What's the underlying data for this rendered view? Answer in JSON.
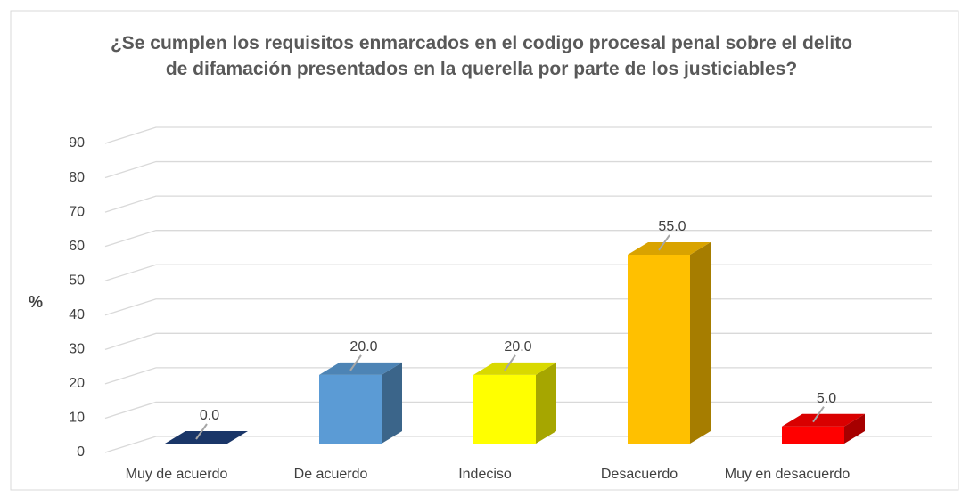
{
  "chart_data": {
    "type": "bar3d",
    "title": "¿Se cumplen los requisitos enmarcados en el codigo procesal  penal sobre  el delito de difamación  presentados  en la querella por parte de los justiciables?",
    "ylabel": "%",
    "categories": [
      "Muy de acuerdo",
      "De acuerdo",
      "Indeciso",
      "Desacuerdo",
      "Muy en desacuerdo"
    ],
    "values": [
      0,
      20,
      20,
      55,
      5
    ],
    "value_labels": [
      "0.0",
      "20.0",
      "20.0",
      "55.0",
      "5.0"
    ],
    "colors": [
      "#1f3f7a",
      "#5b9bd5",
      "#ffff00",
      "#ffc000",
      "#ff0000"
    ],
    "ylim": [
      0,
      90
    ],
    "yticks": [
      0,
      10,
      20,
      30,
      40,
      50,
      60,
      70,
      80,
      90
    ],
    "grid": true
  }
}
